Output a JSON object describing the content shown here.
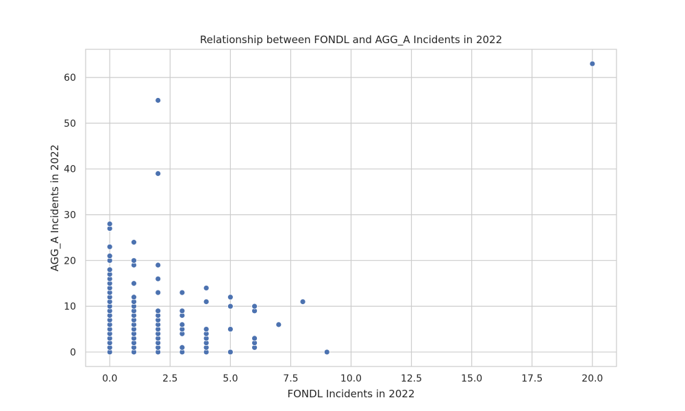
{
  "chart_data": {
    "type": "scatter",
    "title": "Relationship between FONDL and AGG_A Incidents in 2022",
    "xlabel": "FONDL Incidents in 2022",
    "ylabel": "AGG_A Incidents in 2022",
    "xlim": [
      -1,
      21
    ],
    "ylim": [
      -3.15,
      66.15
    ],
    "xticks": [
      "0.0",
      "2.5",
      "5.0",
      "7.5",
      "10.0",
      "12.5",
      "15.0",
      "17.5",
      "20.0"
    ],
    "yticks": [
      "0",
      "10",
      "20",
      "30",
      "40",
      "50",
      "60"
    ],
    "grid": true,
    "marker_color": "#4c72b0",
    "points": [
      [
        0,
        0
      ],
      [
        0,
        1
      ],
      [
        0,
        2
      ],
      [
        0,
        3
      ],
      [
        0,
        4
      ],
      [
        0,
        5
      ],
      [
        0,
        6
      ],
      [
        0,
        7
      ],
      [
        0,
        8
      ],
      [
        0,
        9
      ],
      [
        0,
        10
      ],
      [
        0,
        11
      ],
      [
        0,
        12
      ],
      [
        0,
        13
      ],
      [
        0,
        14
      ],
      [
        0,
        15
      ],
      [
        0,
        16
      ],
      [
        0,
        17
      ],
      [
        0,
        18
      ],
      [
        0,
        20
      ],
      [
        0,
        21
      ],
      [
        0,
        23
      ],
      [
        0,
        27
      ],
      [
        0,
        28
      ],
      [
        1,
        0
      ],
      [
        1,
        1
      ],
      [
        1,
        2
      ],
      [
        1,
        3
      ],
      [
        1,
        4
      ],
      [
        1,
        5
      ],
      [
        1,
        6
      ],
      [
        1,
        7
      ],
      [
        1,
        8
      ],
      [
        1,
        9
      ],
      [
        1,
        10
      ],
      [
        1,
        11
      ],
      [
        1,
        12
      ],
      [
        1,
        15
      ],
      [
        1,
        19
      ],
      [
        1,
        20
      ],
      [
        1,
        24
      ],
      [
        2,
        0
      ],
      [
        2,
        1
      ],
      [
        2,
        2
      ],
      [
        2,
        3
      ],
      [
        2,
        4
      ],
      [
        2,
        5
      ],
      [
        2,
        6
      ],
      [
        2,
        7
      ],
      [
        2,
        8
      ],
      [
        2,
        9
      ],
      [
        2,
        13
      ],
      [
        2,
        16
      ],
      [
        2,
        19
      ],
      [
        2,
        39
      ],
      [
        2,
        55
      ],
      [
        3,
        0
      ],
      [
        3,
        1
      ],
      [
        3,
        4
      ],
      [
        3,
        5
      ],
      [
        3,
        6
      ],
      [
        3,
        8
      ],
      [
        3,
        9
      ],
      [
        3,
        13
      ],
      [
        4,
        0
      ],
      [
        4,
        1
      ],
      [
        4,
        2
      ],
      [
        4,
        3
      ],
      [
        4,
        4
      ],
      [
        4,
        5
      ],
      [
        4,
        11
      ],
      [
        4,
        14
      ],
      [
        5,
        0
      ],
      [
        5,
        5
      ],
      [
        5,
        10
      ],
      [
        5,
        12
      ],
      [
        6,
        1
      ],
      [
        6,
        2
      ],
      [
        6,
        3
      ],
      [
        6,
        9
      ],
      [
        6,
        10
      ],
      [
        7,
        6
      ],
      [
        8,
        11
      ],
      [
        9,
        0
      ],
      [
        20,
        63
      ]
    ]
  }
}
